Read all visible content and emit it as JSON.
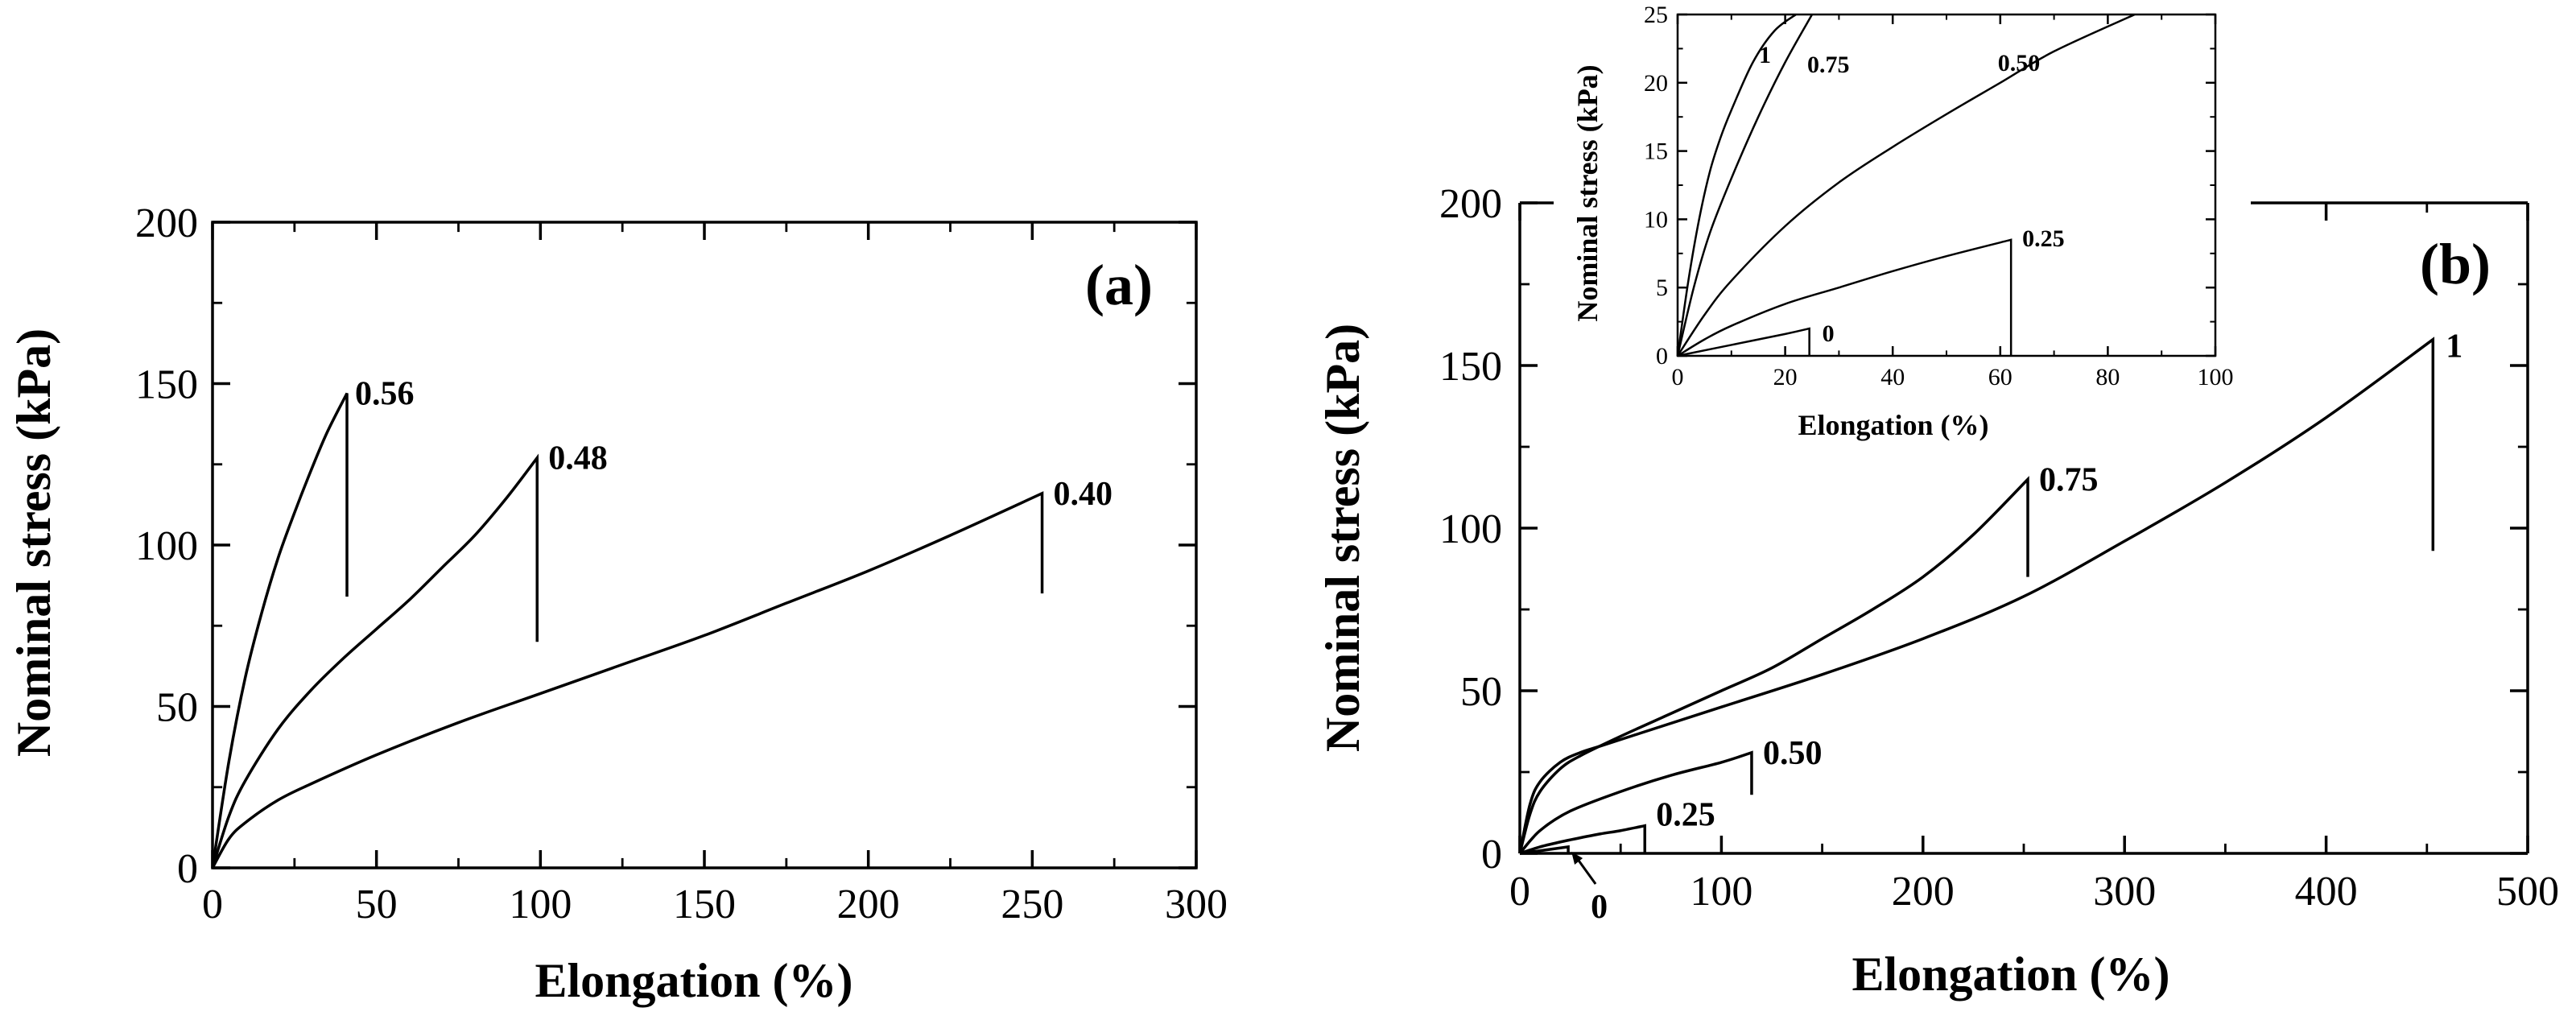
{
  "chart_data": [
    {
      "id": "a",
      "type": "line",
      "panel_label": "(a)",
      "xlabel": "Elongation (%)",
      "ylabel": "Nominal stress (kPa)",
      "xlim": [
        0,
        300
      ],
      "ylim": [
        0,
        200
      ],
      "xticks": [
        0,
        50,
        100,
        150,
        200,
        250,
        300
      ],
      "yticks": [
        0,
        50,
        100,
        150,
        200
      ],
      "xtick_labels": [
        "0",
        "50",
        "100",
        "150",
        "200",
        "250",
        "300"
      ],
      "ytick_labels": [
        "0",
        "50",
        "100",
        "150",
        "200"
      ],
      "series": [
        {
          "name": "0.56",
          "label": "0.56",
          "x": [
            0,
            5,
            10,
            15,
            20,
            25,
            30,
            35,
            41
          ],
          "y": [
            0,
            33,
            59,
            79,
            96,
            110,
            123,
            135,
            147
          ],
          "drop_to": 84
        },
        {
          "name": "0.48",
          "label": "0.48",
          "x": [
            0,
            5,
            10,
            20,
            30,
            40,
            50,
            60,
            70,
            80,
            90,
            99
          ],
          "y": [
            0,
            16,
            27,
            43,
            55,
            65,
            74,
            83,
            93,
            103,
            115,
            127
          ],
          "drop_to": 70
        },
        {
          "name": "0.40",
          "label": "0.40",
          "x": [
            0,
            5,
            10,
            20,
            30,
            50,
            75,
            100,
            125,
            150,
            175,
            200,
            225,
            253
          ],
          "y": [
            0,
            9,
            14,
            21,
            26,
            35,
            45,
            54,
            63,
            72,
            82,
            92,
            103,
            116
          ],
          "drop_to": 85
        }
      ]
    },
    {
      "id": "b",
      "type": "line",
      "panel_label": "(b)",
      "xlabel": "Elongation (%)",
      "ylabel": "Nominal stress (kPa)",
      "xlim": [
        0,
        500
      ],
      "ylim": [
        0,
        200
      ],
      "xticks": [
        0,
        100,
        200,
        300,
        400,
        500
      ],
      "yticks": [
        0,
        50,
        100,
        150,
        200
      ],
      "xtick_labels": [
        "0",
        "100",
        "200",
        "300",
        "400",
        "500"
      ],
      "ytick_labels": [
        "0",
        "50",
        "100",
        "150",
        "200"
      ],
      "series": [
        {
          "name": "1",
          "label": "1",
          "x": [
            0,
            5,
            10,
            20,
            30,
            40,
            60,
            100,
            150,
            200,
            250,
            300,
            350,
            400,
            453
          ],
          "y": [
            0,
            15,
            22,
            28,
            31,
            33,
            37,
            45,
            55,
            66,
            79,
            96,
            114,
            134,
            158
          ],
          "drop_to": 93
        },
        {
          "name": "0.75",
          "label": "0.75",
          "x": [
            0,
            5,
            10,
            20,
            30,
            50,
            75,
            100,
            125,
            150,
            175,
            200,
            225,
            252
          ],
          "y": [
            0,
            12,
            19,
            26,
            30,
            36,
            43,
            50,
            57,
            66,
            75,
            85,
            98,
            115
          ],
          "drop_to": 85
        },
        {
          "name": "0.50",
          "label": "0.50",
          "x": [
            0,
            10,
            25,
            50,
            75,
            100,
            115
          ],
          "y": [
            0,
            7,
            13,
            19,
            24,
            28,
            31
          ],
          "drop_to": 18
        },
        {
          "name": "0.25",
          "label": "0.25",
          "x": [
            0,
            10,
            20,
            30,
            40,
            50,
            62
          ],
          "y": [
            0,
            2,
            3.5,
            4.8,
            6,
            7,
            8.5
          ],
          "drop_to": 0
        },
        {
          "name": "0",
          "label": "0",
          "x": [
            0,
            10,
            24
          ],
          "y": [
            0,
            0.8,
            2
          ],
          "drop_to": 0
        }
      ],
      "annotations": [
        {
          "text": "0",
          "arrow": "to curve 0"
        }
      ]
    },
    {
      "id": "b-inset",
      "type": "line",
      "xlabel": "Elongation (%)",
      "ylabel": "Nominal stress (kPa)",
      "xlim": [
        0,
        100
      ],
      "ylim": [
        0,
        25
      ],
      "xticks": [
        0,
        20,
        40,
        60,
        80,
        100
      ],
      "yticks": [
        0,
        5,
        10,
        15,
        20,
        25
      ],
      "xtick_labels": [
        "0",
        "20",
        "40",
        "60",
        "80",
        "100"
      ],
      "ytick_labels": [
        "0",
        "5",
        "10",
        "15",
        "20",
        "25"
      ],
      "series": [
        {
          "name": "1",
          "label": "1",
          "x": [
            0,
            2,
            4,
            6,
            8,
            10,
            14,
            18,
            22
          ],
          "y": [
            0,
            5.5,
            10,
            13.5,
            16,
            18,
            21.5,
            23.8,
            25
          ]
        },
        {
          "name": "0.75",
          "label": "0.75",
          "x": [
            0,
            3,
            6,
            10,
            15,
            20,
            25
          ],
          "y": [
            0,
            5,
            9,
            13,
            17.5,
            21.5,
            25
          ]
        },
        {
          "name": "0.50",
          "label": "0.50",
          "x": [
            0,
            5,
            10,
            20,
            30,
            40,
            50,
            60,
            70,
            85
          ],
          "y": [
            0,
            3,
            5.5,
            9.5,
            12.7,
            15.3,
            17.7,
            20,
            22.3,
            25
          ]
        },
        {
          "name": "0.25",
          "label": "0.25",
          "x": [
            0,
            5,
            10,
            20,
            30,
            40,
            50,
            62
          ],
          "y": [
            0,
            1.2,
            2.2,
            3.8,
            5,
            6.2,
            7.3,
            8.5
          ],
          "drop_to": 0
        },
        {
          "name": "0",
          "label": "0",
          "x": [
            0,
            10,
            20,
            24.5
          ],
          "y": [
            0,
            0.8,
            1.6,
            2
          ],
          "drop_to": 0
        }
      ]
    }
  ]
}
